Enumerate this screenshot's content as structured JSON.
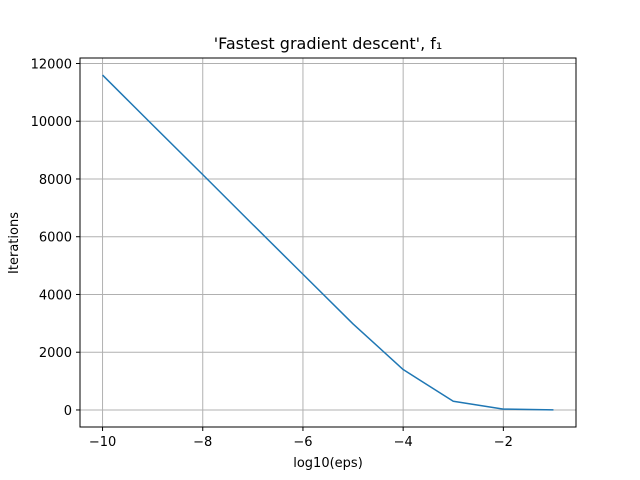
{
  "chart_data": {
    "type": "line",
    "title": "'Fastest gradient descent', f₁",
    "xlabel": "log10(eps)",
    "ylabel": "Iterations",
    "xlim": [
      -10.45,
      -0.55
    ],
    "ylim": [
      -590,
      12190
    ],
    "xticks": [
      -10,
      -8,
      -6,
      -4,
      -2
    ],
    "xtick_labels": [
      "−10",
      "−8",
      "−6",
      "−4",
      "−2"
    ],
    "yticks": [
      0,
      2000,
      4000,
      6000,
      8000,
      10000,
      12000
    ],
    "ytick_labels": [
      "0",
      "2000",
      "4000",
      "6000",
      "8000",
      "10000",
      "12000"
    ],
    "grid": true,
    "series": [
      {
        "color": "#1f77b4",
        "x": [
          -10,
          -9,
          -8,
          -7,
          -6,
          -5,
          -4,
          -3,
          -2,
          -1
        ],
        "y": [
          11600,
          9870,
          8150,
          6420,
          4700,
          2980,
          1400,
          300,
          30,
          5
        ]
      }
    ]
  }
}
